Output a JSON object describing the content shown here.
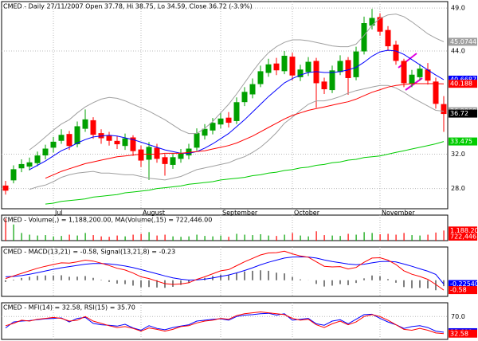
{
  "chart_data": [
    {
      "type": "candlestick",
      "title": "CMED - Daily 27/11/2007 Open 37.78, Hi 38.75, Lo 34.59, Close 36.72 (-3.9%)",
      "categories": [
        null,
        null,
        null,
        null,
        null,
        null,
        "Jul",
        null,
        null,
        null,
        null,
        null,
        null,
        null,
        null,
        null,
        null,
        "August",
        null,
        null,
        null,
        null,
        null,
        null,
        null,
        null,
        null,
        "September",
        null,
        null,
        null,
        null,
        null,
        null,
        null,
        null,
        "October",
        null,
        null,
        null,
        null,
        null,
        null,
        null,
        null,
        null,
        null,
        "November",
        null,
        null,
        null,
        null,
        null,
        null,
        null,
        null
      ],
      "open": [
        28.3,
        29.0,
        30.4,
        30.6,
        31.0,
        31.9,
        32.8,
        33.6,
        34.3,
        33.2,
        35.0,
        35.9,
        34.4,
        34.1,
        33.5,
        33.0,
        33.9,
        32.5,
        31.4,
        32.7,
        31.6,
        30.8,
        31.5,
        31.9,
        32.8,
        34.2,
        34.8,
        35.5,
        36.2,
        35.9,
        38.1,
        39.0,
        40.2,
        41.5,
        42.5,
        41.7,
        43.3,
        41.0,
        41.6,
        42.8,
        40.4,
        39.5,
        41.6,
        42.9,
        41.0,
        44.0,
        47.0,
        47.9,
        46.4,
        44.7,
        42.8,
        40.2,
        41.0,
        41.8,
        40.4,
        37.78
      ],
      "high": [
        28.9,
        30.7,
        31.4,
        31.6,
        32.3,
        33.1,
        34.0,
        34.9,
        34.7,
        35.8,
        37.2,
        36.3,
        34.9,
        34.6,
        34.1,
        34.4,
        34.2,
        33.0,
        33.4,
        33.2,
        32.0,
        32.1,
        32.6,
        33.2,
        35.0,
        35.5,
        36.2,
        36.8,
        36.9,
        38.6,
        39.8,
        40.8,
        42.3,
        43.1,
        43.2,
        44.0,
        43.8,
        42.4,
        43.3,
        43.2,
        40.9,
        42.3,
        43.5,
        43.3,
        44.5,
        48.0,
        48.9,
        48.4,
        46.9,
        45.2,
        43.1,
        41.8,
        42.5,
        42.6,
        40.9,
        38.75
      ],
      "low": [
        27.3,
        28.6,
        29.9,
        30.1,
        30.6,
        31.4,
        32.2,
        33.2,
        32.5,
        32.8,
        34.6,
        33.8,
        33.2,
        33.0,
        32.6,
        32.5,
        31.8,
        30.5,
        29.0,
        31.0,
        29.5,
        30.3,
        31.0,
        31.4,
        32.4,
        33.7,
        34.3,
        35.0,
        35.1,
        35.5,
        37.6,
        38.5,
        39.8,
        41.0,
        41.2,
        41.3,
        40.6,
        40.5,
        41.1,
        37.4,
        39.0,
        39.1,
        41.2,
        38.9,
        40.6,
        43.6,
        46.5,
        45.8,
        44.0,
        42.4,
        39.8,
        39.8,
        40.6,
        40.1,
        37.3,
        34.59
      ],
      "close": [
        27.8,
        30.2,
        30.8,
        31.0,
        31.8,
        32.6,
        33.4,
        34.2,
        33.0,
        35.2,
        36.0,
        34.3,
        33.9,
        33.6,
        33.2,
        33.8,
        32.4,
        31.3,
        32.8,
        31.5,
        30.9,
        31.6,
        32.0,
        32.6,
        34.4,
        34.9,
        35.6,
        36.1,
        35.7,
        38.0,
        39.2,
        40.1,
        41.6,
        42.4,
        41.8,
        43.4,
        41.2,
        41.8,
        42.7,
        40.3,
        39.6,
        41.7,
        42.8,
        40.9,
        43.9,
        47.2,
        47.8,
        46.3,
        44.6,
        42.9,
        40.3,
        41.2,
        41.9,
        40.6,
        37.9,
        36.72
      ],
      "up_color": "#00a000",
      "down_color": "#ff0000",
      "close_color": "#000000",
      "ylim": [
        25.65,
        49.75
      ],
      "yticks": [
        {
          "value": 28,
          "label": "28.0"
        },
        {
          "value": 32,
          "label": "32.0"
        },
        {
          "value": 44,
          "label": "44.0"
        },
        {
          "value": 49,
          "label": "49.0"
        }
      ],
      "grid": true,
      "series": [
        {
          "color": "#a0a0a0",
          "values": [
            null,
            null,
            null,
            32.5,
            33.2,
            34.0,
            34.8,
            35.5,
            36.0,
            36.8,
            37.5,
            38.0,
            38.4,
            38.6,
            38.5,
            38.2,
            37.8,
            37.4,
            37.0,
            36.5,
            36.0,
            35.4,
            34.8,
            34.4,
            34.4,
            35.0,
            35.8,
            36.8,
            37.8,
            39.0,
            40.3,
            41.6,
            42.8,
            43.8,
            44.5,
            45.0,
            45.3,
            45.3,
            45.2,
            45.0,
            44.8,
            44.6,
            44.5,
            44.5,
            44.8,
            45.8,
            47.0,
            47.8,
            48.2,
            48.3,
            48.0,
            47.4,
            46.7,
            46.0,
            45.5,
            45.0744
          ]
        },
        {
          "color": "#a0a0a0",
          "values": [
            null,
            null,
            null,
            27.9,
            28.2,
            28.4,
            28.8,
            29.3,
            29.6,
            29.8,
            29.9,
            30.0,
            29.8,
            29.8,
            29.7,
            29.6,
            29.6,
            29.4,
            29.2,
            29.1,
            29.0,
            29.2,
            29.4,
            29.8,
            30.2,
            30.4,
            30.6,
            30.8,
            31.0,
            31.4,
            31.7,
            32.2,
            32.8,
            33.6,
            34.5,
            35.6,
            36.3,
            37.1,
            37.8,
            38.2,
            38.2,
            38.4,
            38.7,
            39.1,
            39.4,
            39.6,
            39.8,
            40.0,
            40.0,
            39.7,
            39.2,
            38.6,
            38.1,
            37.6,
            37.1,
            36.9968
          ]
        },
        {
          "color": "#0000ff",
          "values": [
            null,
            null,
            null,
            30.2,
            30.7,
            31.2,
            31.8,
            32.4,
            32.8,
            33.3,
            33.7,
            34.0,
            34.1,
            34.2,
            34.1,
            33.9,
            33.7,
            33.4,
            33.1,
            32.8,
            32.5,
            32.3,
            32.1,
            32.1,
            32.3,
            32.7,
            33.2,
            33.8,
            34.4,
            35.2,
            36.0,
            36.9,
            37.8,
            38.7,
            39.5,
            40.3,
            40.8,
            41.2,
            41.5,
            41.6,
            41.5,
            41.5,
            41.6,
            41.8,
            42.1,
            42.7,
            43.4,
            43.9,
            44.1,
            44.0,
            43.6,
            43.0,
            42.4,
            41.8,
            41.2,
            40.6687
          ]
        },
        {
          "color": "#ff0000",
          "values": [
            null,
            null,
            null,
            null,
            null,
            29.2,
            29.6,
            30.0,
            30.3,
            30.6,
            30.9,
            31.1,
            31.3,
            31.5,
            31.7,
            31.8,
            31.9,
            32.0,
            32.0,
            32.0,
            32.1,
            32.1,
            32.1,
            32.2,
            32.3,
            32.4,
            32.6,
            32.8,
            33.0,
            33.3,
            33.7,
            34.1,
            34.6,
            35.1,
            35.6,
            36.1,
            36.5,
            36.8,
            37.1,
            37.3,
            37.5,
            37.7,
            37.9,
            38.1,
            38.4,
            38.8,
            39.2,
            39.5,
            39.8,
            40.0,
            40.1,
            40.2,
            40.2,
            40.2,
            40.2,
            40.188
          ]
        },
        {
          "color": "#00cc00",
          "values": [
            null,
            null,
            null,
            null,
            null,
            26.2,
            26.3,
            26.5,
            26.6,
            26.7,
            26.8,
            27.0,
            27.1,
            27.2,
            27.3,
            27.5,
            27.6,
            27.7,
            27.8,
            28.0,
            28.1,
            28.2,
            28.3,
            28.5,
            28.6,
            28.7,
            28.8,
            29.0,
            29.1,
            29.2,
            29.3,
            29.5,
            29.6,
            29.8,
            29.9,
            30.1,
            30.2,
            30.4,
            30.5,
            30.7,
            30.8,
            31.0,
            31.1,
            31.3,
            31.4,
            31.6,
            31.7,
            31.8,
            32.0,
            32.2,
            32.4,
            32.6,
            32.8,
            33.0,
            33.2,
            33.475
          ]
        }
      ]
    },
    {
      "type": "bar",
      "title": "CMED - Volume(,) = 1,188,200.00, MA(Volume(,15) = 722,446.00",
      "values": [
        2600000,
        1900000,
        900000,
        700000,
        600000,
        650000,
        500000,
        550000,
        700000,
        600000,
        900000,
        650000,
        500000,
        450000,
        600000,
        500000,
        700000,
        800000,
        1000000,
        600000,
        700000,
        500000,
        450000,
        500000,
        700000,
        550000,
        500000,
        600000,
        450000,
        800000,
        700000,
        650000,
        750000,
        600000,
        550000,
        700000,
        900000,
        600000,
        500000,
        1100000,
        650000,
        600000,
        550000,
        800000,
        700000,
        1000000,
        900000,
        750000,
        800000,
        700000,
        900000,
        650000,
        600000,
        700000,
        950000,
        1188200
      ],
      "value_labels": [
        null,
        null,
        null,
        null,
        null,
        null,
        null,
        null,
        null,
        null,
        null,
        null,
        null,
        null,
        null,
        null,
        null,
        null,
        null,
        null,
        null,
        null,
        null,
        null,
        null,
        null,
        null,
        null,
        null,
        null,
        null,
        null,
        null,
        null,
        null,
        null,
        null,
        null,
        null,
        null,
        null,
        null,
        null,
        null,
        null,
        null,
        null,
        null,
        null,
        null,
        null,
        null,
        null,
        null,
        null,
        "1,188,200"
      ],
      "ma_label": "722,446",
      "ma_color": "#ff0000",
      "label_color": "#ff0000",
      "ylim": [
        0,
        3000000
      ]
    },
    {
      "type": "macd",
      "title": "CMED - MACD(13,21) = -0.58, Signal(13,21,8) = -0.23",
      "histogram": [
        -0.1,
        0.03,
        0.13,
        0.2,
        0.26,
        0.28,
        0.28,
        0.29,
        0.2,
        0.21,
        0.24,
        0.14,
        0.02,
        -0.1,
        -0.2,
        -0.23,
        -0.32,
        -0.42,
        -0.4,
        -0.43,
        -0.45,
        -0.39,
        -0.28,
        -0.16,
        0.03,
        0.14,
        0.25,
        0.33,
        0.31,
        0.42,
        0.51,
        0.55,
        0.58,
        0.55,
        0.44,
        0.4,
        0.19,
        0.05,
        -0.01,
        -0.22,
        -0.37,
        -0.32,
        -0.23,
        -0.29,
        -0.16,
        0.11,
        0.28,
        0.23,
        0.07,
        -0.15,
        -0.4,
        -0.47,
        -0.45,
        -0.48,
        -0.59,
        -0.35
      ],
      "histogram_color": "#000000",
      "ylim": [
        -0.95,
        1.95
      ],
      "series": [
        {
          "color": "#0000ff",
          "values": [
            0.2,
            0.22,
            0.27,
            0.35,
            0.44,
            0.54,
            0.64,
            0.73,
            0.8,
            0.87,
            0.94,
            0.98,
            0.98,
            0.96,
            0.9,
            0.83,
            0.74,
            0.62,
            0.5,
            0.38,
            0.25,
            0.14,
            0.06,
            0.01,
            0.02,
            0.06,
            0.13,
            0.22,
            0.31,
            0.43,
            0.57,
            0.73,
            0.9,
            1.05,
            1.18,
            1.3,
            1.36,
            1.37,
            1.36,
            1.3,
            1.19,
            1.1,
            1.03,
            0.95,
            0.91,
            0.94,
            1.02,
            1.09,
            1.11,
            1.07,
            0.95,
            0.82,
            0.67,
            0.53,
            0.34,
            -0.225409
          ]
        },
        {
          "color": "#ff0000",
          "values": [
            0.1,
            0.25,
            0.4,
            0.55,
            0.7,
            0.82,
            0.92,
            1.02,
            1.0,
            1.08,
            1.18,
            1.12,
            1.0,
            0.86,
            0.7,
            0.6,
            0.42,
            0.2,
            0.1,
            -0.05,
            -0.2,
            -0.25,
            -0.22,
            -0.15,
            0.05,
            0.2,
            0.38,
            0.55,
            0.62,
            0.85,
            1.08,
            1.28,
            1.48,
            1.6,
            1.62,
            1.7,
            1.55,
            1.42,
            1.35,
            1.08,
            0.82,
            0.78,
            0.8,
            0.66,
            0.75,
            1.05,
            1.3,
            1.32,
            1.18,
            0.92,
            0.55,
            0.35,
            0.22,
            0.05,
            -0.25,
            -0.58
          ]
        }
      ]
    },
    {
      "type": "line",
      "title": "CMED - MFI(14) = 32.58, RSI(15) = 35.70",
      "ylim": [
        20,
        100
      ],
      "yticks": [
        {
          "value": 70,
          "label": "70.0"
        }
      ],
      "grid": true,
      "series": [
        {
          "color": "#0000ff",
          "values": [
            45,
            58,
            60,
            61,
            63,
            65,
            66,
            67,
            58,
            66,
            68,
            55,
            52,
            51,
            49,
            53,
            45,
            40,
            50,
            44,
            41,
            46,
            49,
            52,
            60,
            62,
            64,
            65,
            62,
            70,
            73,
            74,
            76,
            77,
            73,
            76,
            62,
            64,
            66,
            54,
            51,
            60,
            63,
            54,
            64,
            74,
            75,
            66,
            58,
            52,
            44,
            48,
            50,
            46,
            38,
            35.699
          ]
        },
        {
          "color": "#ff0000",
          "values": [
            50,
            55,
            62,
            60,
            64,
            66,
            68,
            66,
            60,
            62,
            70,
            60,
            55,
            50,
            46,
            48,
            44,
            38,
            45,
            42,
            38,
            42,
            48,
            50,
            56,
            60,
            62,
            66,
            64,
            72,
            76,
            78,
            80,
            78,
            76,
            74,
            66,
            62,
            64,
            52,
            46,
            54,
            60,
            52,
            58,
            70,
            74,
            70,
            62,
            52,
            42,
            40,
            44,
            40,
            34,
            32.58
          ]
        }
      ]
    }
  ]
}
